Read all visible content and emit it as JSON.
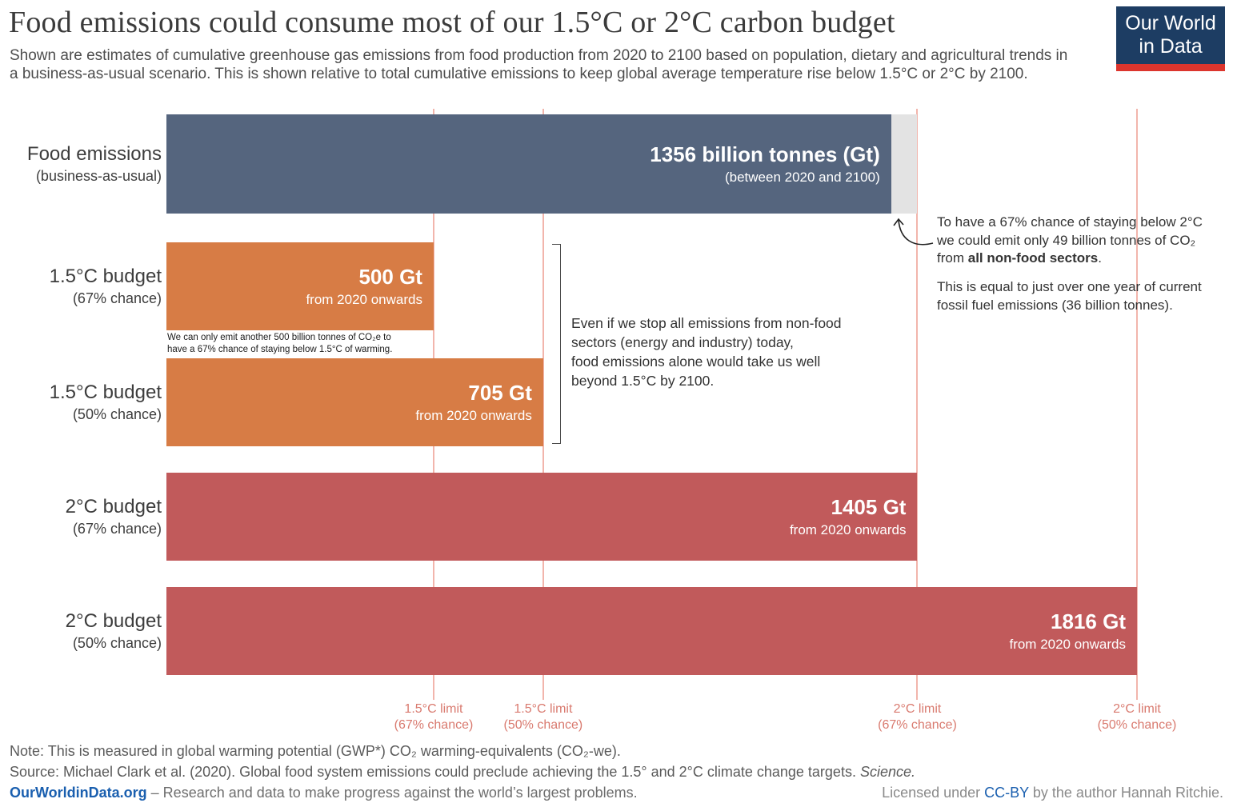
{
  "colors": {
    "brand-navy": "#1D3D63",
    "brand-red": "#DC352D",
    "link-blue": "#1A5FAF"
  },
  "header": {
    "title": "Food emissions could consume most of our 1.5°C or 2°C carbon budget",
    "subtitle": "Shown are estimates of cumulative greenhouse gas emissions from food production from 2020 to 2100 based on population, dietary and agricultural trends in a business-as-usual scenario. This is shown relative to total cumulative emissions to keep global average temperature rise below 1.5°C  or 2°C  by 2100.",
    "logo_line1": "Our World",
    "logo_line2": "in Data"
  },
  "chart_data": {
    "type": "bar",
    "orientation": "horizontal",
    "unit": "Gt",
    "xlim": [
      0,
      1890
    ],
    "grid": false,
    "bars": [
      {
        "category": "Food emissions (business-as-usual)",
        "label": "Food emissions",
        "sublabel": "(business-as-usual)",
        "value": 1356,
        "value_label": "1356 billion tonnes (Gt)",
        "value_sublabel": "(between 2020 and 2100)",
        "color": "#55657E",
        "remaining_nonfood": {
          "value": 49,
          "color": "#E3E3E3"
        }
      },
      {
        "category": "1.5°C budget (67% chance)",
        "label": "1.5°C budget",
        "sublabel": "(67% chance)",
        "value": 500,
        "value_label": "500 Gt",
        "value_sublabel": "from 2020 onwards",
        "color": "#D77C45"
      },
      {
        "category": "1.5°C budget (50% chance)",
        "label": "1.5°C budget",
        "sublabel": "(50% chance)",
        "value": 705,
        "value_label": "705 Gt",
        "value_sublabel": "from 2020 onwards",
        "color": "#D77C45"
      },
      {
        "category": "2°C budget (67% chance)",
        "label": "2°C budget",
        "sublabel": "(67% chance)",
        "value": 1405,
        "value_label": "1405 Gt",
        "value_sublabel": "from 2020 onwards",
        "color": "#C15A5B"
      },
      {
        "category": "2°C budget (50% chance)",
        "label": "2°C budget",
        "sublabel": "(50% chance)",
        "value": 1816,
        "value_label": "1816 Gt",
        "value_sublabel": "from 2020 onwards",
        "color": "#C15A5B"
      }
    ],
    "reference_lines": [
      {
        "value": 500,
        "line1": "1.5°C limit",
        "line2": "(67% chance)"
      },
      {
        "value": 705,
        "line1": "1.5°C limit",
        "line2": "(50% chance)"
      },
      {
        "value": 1405,
        "line1": "2°C limit",
        "line2": "(67% chance)"
      },
      {
        "value": 1816,
        "line1": "2°C limit",
        "line2": "(50% chance)"
      }
    ],
    "line_color": "#F2B5AC",
    "line_label_color": "#D97A6F"
  },
  "annotations": {
    "small_note_line1": "We can only emit another 500 billion tonnes of CO₂e to",
    "small_note_line2": "have a 67% chance of staying below 1.5°C of warming.",
    "bracket_line1": "Even if we stop all emissions from non-food",
    "bracket_line2": "sectors (energy and industry) today,",
    "bracket_line3": "food emissions alone would take us well",
    "bracket_line4": "beyond 1.5°C by 2100.",
    "nonfood_line1": "To have a 67% chance of staying below 2°C",
    "nonfood_line2": "we could emit only 49 billion tonnes of CO₂",
    "nonfood_line3_prefix": "from ",
    "nonfood_line3_bold": "all non-food sectors",
    "nonfood_line3_suffix": ".",
    "fossil_line1": "This is equal to just over one year of current",
    "fossil_line2": "fossil fuel emissions (36 billion tonnes)."
  },
  "footer": {
    "note": "Note: This is measured in global warming potential (GWP*) CO₂ warming-equivalents (CO₂-we).",
    "source_prefix": "Source: Michael Clark et al. (2020). Global food system emissions could preclude achieving the 1.5° and 2°C climate change targets. ",
    "source_italic": "Science.",
    "site": "OurWorldinData.org",
    "tagline": " – Research and data to make progress against the world’s largest problems.",
    "license_prefix": "Licensed under ",
    "license_link": "CC-BY",
    "license_suffix": " by the author Hannah Ritchie."
  }
}
